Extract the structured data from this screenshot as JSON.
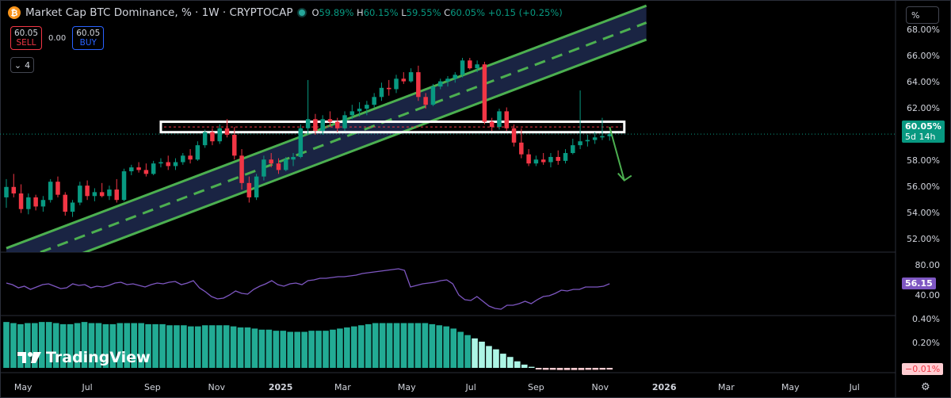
{
  "header": {
    "coin_symbol": "₿",
    "title": "Market Cap BTC Dominance, % · 1W · CRYPTOCAP",
    "o_label": "O",
    "o_value": "59.89%",
    "h_label": "H",
    "h_value": "60.15%",
    "l_label": "L",
    "l_value": "59.55%",
    "c_label": "C",
    "c_value": "60.05%",
    "change": "+0.15 (+0.25%)"
  },
  "trade": {
    "sell_price": "60.05",
    "sell_label": "SELL",
    "spread": "0.00",
    "buy_price": "60.05",
    "buy_label": "BUY"
  },
  "indicators_collapsed": {
    "icon": "chevron-down-icon",
    "count": "4"
  },
  "scale_mode": "%",
  "price_axis_labels": [
    "68.00%",
    "66.00%",
    "64.00%",
    "62.00%",
    "60.00%",
    "58.00%",
    "56.00%",
    "54.00%",
    "52.00%"
  ],
  "current_price": {
    "value": "60.05%",
    "countdown": "5d 14h"
  },
  "rsi": {
    "axis_labels": [
      "80.00",
      "40.00"
    ],
    "value_tag": "56.15"
  },
  "histogram": {
    "axis_labels": [
      "0.40%",
      "0.20%"
    ],
    "value_tag": "−0.01%"
  },
  "time_axis_labels": [
    "May",
    "Jul",
    "Sep",
    "Nov",
    "2025",
    "Mar",
    "May",
    "Jul",
    "Sep",
    "Nov",
    "2026",
    "Mar",
    "May",
    "Jul"
  ],
  "brand": {
    "name": "TradingView",
    "logo_icon": "tradingview-logo-icon"
  },
  "colors": {
    "up": "#089981",
    "down": "#f23645",
    "channel": "#4caf50",
    "channel_fill": "#1e2a4f",
    "rsi": "#7e57c2",
    "hist_high": "#22ab94",
    "hist_low": "#acf5e5",
    "hist_neg": "#ffcdd2"
  },
  "chart_data": [
    {
      "type": "candlestick",
      "title": "Market Cap BTC Dominance, % · 1W · CRYPTOCAP",
      "ylim": [
        51,
        69
      ],
      "xlim": [
        "2024-04-15",
        "2026-07-31"
      ],
      "y_unit": "%",
      "grid": false,
      "candles": [
        [
          "2024-04-15",
          55.2,
          56.6,
          54.4,
          56.0
        ],
        [
          "2024-04-22",
          56.0,
          57.0,
          55.2,
          55.5
        ],
        [
          "2024-04-29",
          55.5,
          56.2,
          54.0,
          54.3
        ],
        [
          "2024-05-06",
          54.3,
          55.5,
          53.9,
          55.2
        ],
        [
          "2024-05-13",
          55.2,
          55.4,
          54.2,
          54.5
        ],
        [
          "2024-05-20",
          54.5,
          55.3,
          54.1,
          55.0
        ],
        [
          "2024-05-27",
          55.0,
          56.6,
          54.8,
          56.4
        ],
        [
          "2024-06-03",
          56.4,
          56.8,
          55.2,
          55.4
        ],
        [
          "2024-06-10",
          55.4,
          55.6,
          53.8,
          54.1
        ],
        [
          "2024-06-17",
          54.1,
          55.0,
          53.7,
          54.8
        ],
        [
          "2024-06-24",
          54.8,
          56.4,
          54.6,
          56.1
        ],
        [
          "2024-07-01",
          56.1,
          56.5,
          55.0,
          55.3
        ],
        [
          "2024-07-08",
          55.3,
          55.9,
          54.9,
          55.6
        ],
        [
          "2024-07-15",
          55.6,
          56.3,
          55.2,
          55.3
        ],
        [
          "2024-07-22",
          55.3,
          56.1,
          55.0,
          55.8
        ],
        [
          "2024-07-29",
          55.8,
          56.6,
          54.8,
          55.0
        ],
        [
          "2024-08-05",
          55.0,
          57.4,
          54.9,
          57.2
        ],
        [
          "2024-08-12",
          57.2,
          57.7,
          56.9,
          57.5
        ],
        [
          "2024-08-19",
          57.5,
          57.9,
          57.1,
          57.3
        ],
        [
          "2024-08-26",
          57.3,
          57.8,
          56.8,
          57.0
        ],
        [
          "2024-09-02",
          57.0,
          58.0,
          56.9,
          57.8
        ],
        [
          "2024-09-09",
          57.8,
          58.2,
          57.5,
          57.9
        ],
        [
          "2024-09-16",
          57.9,
          58.4,
          57.3,
          57.6
        ],
        [
          "2024-09-23",
          57.6,
          58.2,
          57.3,
          57.9
        ],
        [
          "2024-09-30",
          57.9,
          58.6,
          57.7,
          58.4
        ],
        [
          "2024-10-07",
          58.4,
          58.9,
          57.8,
          58.1
        ],
        [
          "2024-10-14",
          58.1,
          59.5,
          58.0,
          59.2
        ],
        [
          "2024-10-21",
          59.2,
          60.4,
          59.0,
          60.2
        ],
        [
          "2024-10-28",
          60.2,
          60.5,
          59.2,
          59.5
        ],
        [
          "2024-11-04",
          59.5,
          60.8,
          59.3,
          60.5
        ],
        [
          "2024-11-11",
          60.5,
          61.2,
          59.8,
          60.0
        ],
        [
          "2024-11-18",
          60.0,
          60.6,
          58.1,
          58.4
        ],
        [
          "2024-11-25",
          58.4,
          58.9,
          55.8,
          56.3
        ],
        [
          "2024-12-02",
          56.3,
          56.8,
          54.8,
          55.2
        ],
        [
          "2024-12-09",
          55.2,
          57.0,
          55.0,
          56.8
        ],
        [
          "2024-12-16",
          56.8,
          58.4,
          56.5,
          58.1
        ],
        [
          "2024-12-23",
          58.1,
          58.6,
          57.5,
          57.8
        ],
        [
          "2024-12-30",
          57.8,
          58.2,
          57.0,
          57.3
        ],
        [
          "2025-01-06",
          57.3,
          58.3,
          57.2,
          58.1
        ],
        [
          "2025-01-13",
          58.1,
          58.6,
          57.6,
          58.3
        ],
        [
          "2025-01-20",
          58.3,
          60.8,
          58.2,
          60.5
        ],
        [
          "2025-01-27",
          60.5,
          64.2,
          60.0,
          61.2
        ],
        [
          "2025-02-03",
          61.2,
          61.6,
          60.0,
          60.3
        ],
        [
          "2025-02-10",
          60.3,
          61.5,
          60.0,
          61.2
        ],
        [
          "2025-02-17",
          61.2,
          61.8,
          60.6,
          61.0
        ],
        [
          "2025-02-24",
          61.0,
          61.3,
          60.2,
          60.5
        ],
        [
          "2025-03-03",
          60.5,
          61.8,
          60.3,
          61.5
        ],
        [
          "2025-03-10",
          61.5,
          62.3,
          61.2,
          61.8
        ],
        [
          "2025-03-17",
          61.8,
          62.5,
          61.4,
          62.0
        ],
        [
          "2025-03-24",
          62.0,
          62.6,
          61.5,
          62.3
        ],
        [
          "2025-03-31",
          62.3,
          63.2,
          62.1,
          62.9
        ],
        [
          "2025-04-07",
          62.9,
          64.0,
          62.6,
          63.6
        ],
        [
          "2025-04-14",
          63.6,
          64.2,
          63.0,
          63.5
        ],
        [
          "2025-04-21",
          63.5,
          64.6,
          63.2,
          64.3
        ],
        [
          "2025-04-28",
          64.3,
          64.8,
          63.9,
          64.1
        ],
        [
          "2025-05-05",
          64.1,
          65.1,
          64.0,
          64.8
        ],
        [
          "2025-05-12",
          64.8,
          65.3,
          62.6,
          62.9
        ],
        [
          "2025-05-19",
          62.9,
          63.2,
          62.0,
          62.3
        ],
        [
          "2025-05-26",
          62.3,
          63.9,
          62.2,
          63.7
        ],
        [
          "2025-06-02",
          63.7,
          64.3,
          63.5,
          64.1
        ],
        [
          "2025-06-09",
          64.1,
          64.5,
          63.7,
          64.3
        ],
        [
          "2025-06-16",
          64.3,
          64.8,
          64.0,
          64.6
        ],
        [
          "2025-06-23",
          64.6,
          65.9,
          64.4,
          65.7
        ],
        [
          "2025-06-30",
          65.7,
          65.9,
          65.0,
          65.1
        ],
        [
          "2025-07-07",
          65.1,
          65.7,
          64.8,
          65.4
        ],
        [
          "2025-07-14",
          65.4,
          65.6,
          60.8,
          61.0
        ],
        [
          "2025-07-21",
          61.0,
          61.3,
          60.3,
          60.6
        ],
        [
          "2025-07-28",
          60.6,
          62.0,
          60.4,
          61.8
        ],
        [
          "2025-08-04",
          61.8,
          62.1,
          60.3,
          60.5
        ],
        [
          "2025-08-11",
          60.5,
          60.8,
          59.1,
          59.4
        ],
        [
          "2025-08-18",
          59.4,
          60.5,
          58.2,
          58.5
        ],
        [
          "2025-08-25",
          58.5,
          58.9,
          57.6,
          57.8
        ],
        [
          "2025-09-01",
          57.8,
          58.4,
          57.6,
          58.1
        ],
        [
          "2025-09-08",
          58.1,
          58.6,
          57.7,
          57.9
        ],
        [
          "2025-09-15",
          57.9,
          58.6,
          57.5,
          58.3
        ],
        [
          "2025-09-22",
          58.3,
          58.8,
          57.7,
          58.0
        ],
        [
          "2025-09-29",
          58.0,
          58.9,
          57.8,
          58.6
        ],
        [
          "2025-10-06",
          58.6,
          59.7,
          58.5,
          59.2
        ],
        [
          "2025-10-13",
          59.2,
          63.4,
          58.9,
          59.5
        ],
        [
          "2025-10-20",
          59.5,
          60.0,
          59.1,
          59.6
        ],
        [
          "2025-10-27",
          59.6,
          60.2,
          59.3,
          59.8
        ],
        [
          "2025-11-03",
          59.8,
          61.3,
          59.6,
          59.9
        ],
        [
          "2025-11-10",
          59.89,
          60.15,
          59.55,
          60.05
        ]
      ],
      "channel_points": [
        [
          "2024-04-15",
          50.0
        ],
        [
          "2025-12-15",
          68.6
        ]
      ],
      "channel_offset": 1.3,
      "zone": {
        "from": "2024-09-09",
        "to": "2025-11-24",
        "low": 60.2,
        "high": 61.0
      },
      "projection_arrow": {
        "from": [
          "2025-11-10",
          60.6
        ],
        "to": [
          "2025-11-24",
          56.5
        ]
      },
      "last_close": 60.05
    },
    {
      "type": "line",
      "name": "RSI",
      "ylim": [
        20,
        90
      ],
      "values": [
        57,
        55,
        51,
        53,
        49,
        52,
        55,
        56,
        53,
        50,
        51,
        56,
        54,
        55,
        51,
        53,
        52,
        54,
        57,
        58,
        55,
        56,
        54,
        52,
        55,
        57,
        56,
        58,
        59,
        55,
        57,
        60,
        51,
        46,
        40,
        37,
        38,
        42,
        47,
        44,
        43,
        49,
        53,
        56,
        60,
        55,
        53,
        56,
        57,
        55,
        60,
        61,
        63,
        63,
        64,
        65,
        65,
        66,
        67,
        69,
        70,
        71,
        72,
        73,
        74,
        75,
        73,
        52,
        54,
        56,
        57,
        58,
        60,
        61,
        56,
        42,
        36,
        35,
        40,
        34,
        28,
        25,
        24,
        29,
        29,
        31,
        34,
        31,
        36,
        40,
        41,
        44,
        48,
        47,
        49,
        49,
        52,
        52,
        52,
        53,
        56.15
      ]
    },
    {
      "type": "bar",
      "name": "Histogram",
      "ylim": [
        -0.02,
        0.45
      ],
      "values": [
        0.42,
        0.41,
        0.4,
        0.41,
        0.41,
        0.42,
        0.42,
        0.41,
        0.4,
        0.4,
        0.41,
        0.42,
        0.41,
        0.41,
        0.4,
        0.4,
        0.41,
        0.41,
        0.41,
        0.41,
        0.4,
        0.4,
        0.4,
        0.39,
        0.39,
        0.39,
        0.38,
        0.38,
        0.39,
        0.39,
        0.39,
        0.39,
        0.38,
        0.37,
        0.37,
        0.36,
        0.35,
        0.35,
        0.34,
        0.34,
        0.33,
        0.33,
        0.33,
        0.34,
        0.34,
        0.34,
        0.35,
        0.36,
        0.37,
        0.38,
        0.39,
        0.4,
        0.41,
        0.41,
        0.41,
        0.41,
        0.41,
        0.41,
        0.41,
        0.41,
        0.4,
        0.39,
        0.38,
        0.36,
        0.33,
        0.3,
        0.27,
        0.24,
        0.2,
        0.17,
        0.13,
        0.1,
        0.06,
        0.03,
        0.01,
        -0.005,
        -0.01,
        -0.01,
        -0.012,
        -0.012,
        -0.012,
        -0.012,
        -0.01,
        -0.01,
        -0.009,
        -0.008
      ]
    }
  ]
}
